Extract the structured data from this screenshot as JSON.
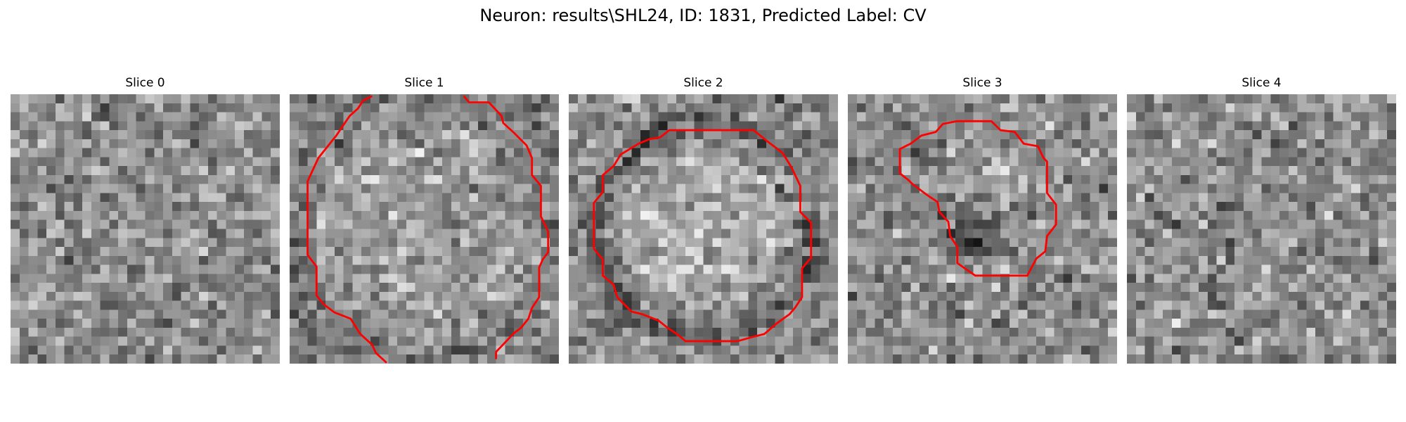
{
  "figure": {
    "title": "Neuron: results\\SHL24, ID: 1831, Predicted Label: CV"
  },
  "slices": [
    {
      "title": "Slice 0",
      "has_contour": false,
      "seed": 11,
      "pattern": "noise"
    },
    {
      "title": "Slice 1",
      "has_contour": true,
      "seed": 23,
      "pattern": "bright-ring"
    },
    {
      "title": "Slice 2",
      "has_contour": true,
      "seed": 37,
      "pattern": "bright-disc"
    },
    {
      "title": "Slice 3",
      "has_contour": true,
      "seed": 51,
      "pattern": "dark-blob"
    },
    {
      "title": "Slice 4",
      "has_contour": false,
      "seed": 67,
      "pattern": "noise"
    }
  ],
  "style": {
    "contour_color": "#ff0000",
    "colormap": "gray"
  }
}
